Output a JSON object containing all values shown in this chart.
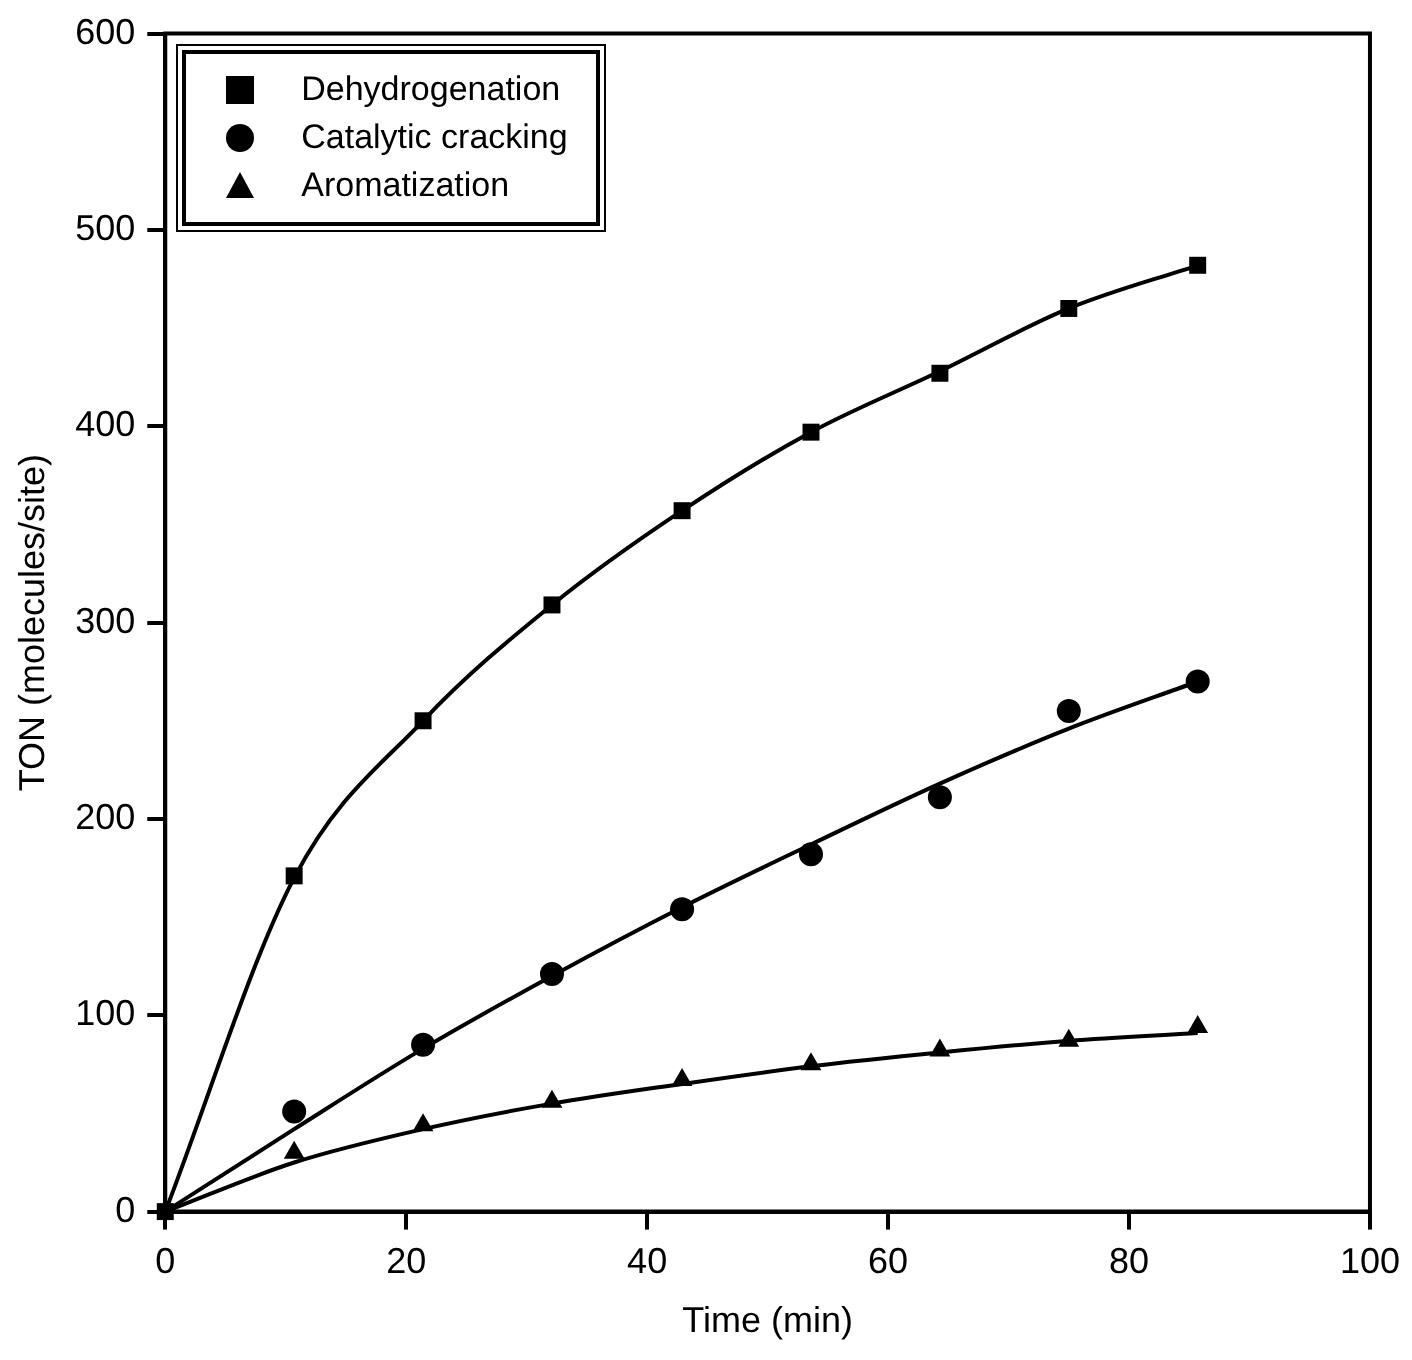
{
  "chart_data": {
    "type": "scatter",
    "xlabel": "Time (min)",
    "ylabel": "TON (molecules/site)",
    "xlim": [
      0,
      100
    ],
    "xticks": [
      0,
      20,
      40,
      60,
      80,
      100
    ],
    "ylim": [
      0,
      600
    ],
    "yticks": [
      0,
      100,
      200,
      300,
      400,
      500,
      600
    ],
    "grid": false,
    "legend": "top left",
    "series": [
      {
        "name": "Dehydrogenation",
        "marker": "square",
        "color": "#000000",
        "x": [
          0,
          10.7,
          21.4,
          32.1,
          42.9,
          53.6,
          64.3,
          75,
          85.7
        ],
        "values": [
          0,
          171,
          250,
          309,
          357,
          397,
          427,
          460,
          482
        ]
      },
      {
        "name": "Catalytic cracking",
        "marker": "circle",
        "color": "#000000",
        "x": [
          10.7,
          21.4,
          32.1,
          42.9,
          53.6,
          64.3,
          75,
          85.7
        ],
        "values": [
          51,
          85,
          121,
          154,
          182,
          211,
          255,
          270
        ]
      },
      {
        "name": "Aromatization",
        "marker": "triangle",
        "color": "#000000",
        "x": [
          10.7,
          21.4,
          32.1,
          42.9,
          53.6,
          64.3,
          75,
          85.7
        ],
        "values": [
          30,
          44,
          56,
          67,
          75,
          82,
          87,
          94
        ]
      },
      {
        "type": "line",
        "marker": "none",
        "line_style": "solid",
        "color": "#000000",
        "x": [
          0,
          10.7,
          21.4,
          32.1,
          42.9,
          53.6,
          64.3,
          75,
          85.7
        ],
        "values": [
          0,
          170,
          250,
          309,
          357,
          397,
          428,
          460,
          482
        ]
      },
      {
        "type": "line",
        "marker": "none",
        "line_style": "solid",
        "color": "#000000",
        "x": [
          0,
          10.7,
          21.4,
          32.1,
          42.9,
          53.6,
          64.3,
          75,
          85.7
        ],
        "values": [
          0,
          42,
          83,
          120,
          155,
          187,
          218,
          246,
          270
        ]
      },
      {
        "type": "line",
        "marker": "none",
        "line_style": "solid",
        "color": "#000000",
        "x": [
          0,
          10.7,
          21.4,
          32.1,
          42.9,
          53.6,
          64.3,
          75,
          85.7
        ],
        "values": [
          0,
          25,
          42,
          55,
          65,
          74,
          81,
          87,
          91
        ]
      }
    ]
  }
}
